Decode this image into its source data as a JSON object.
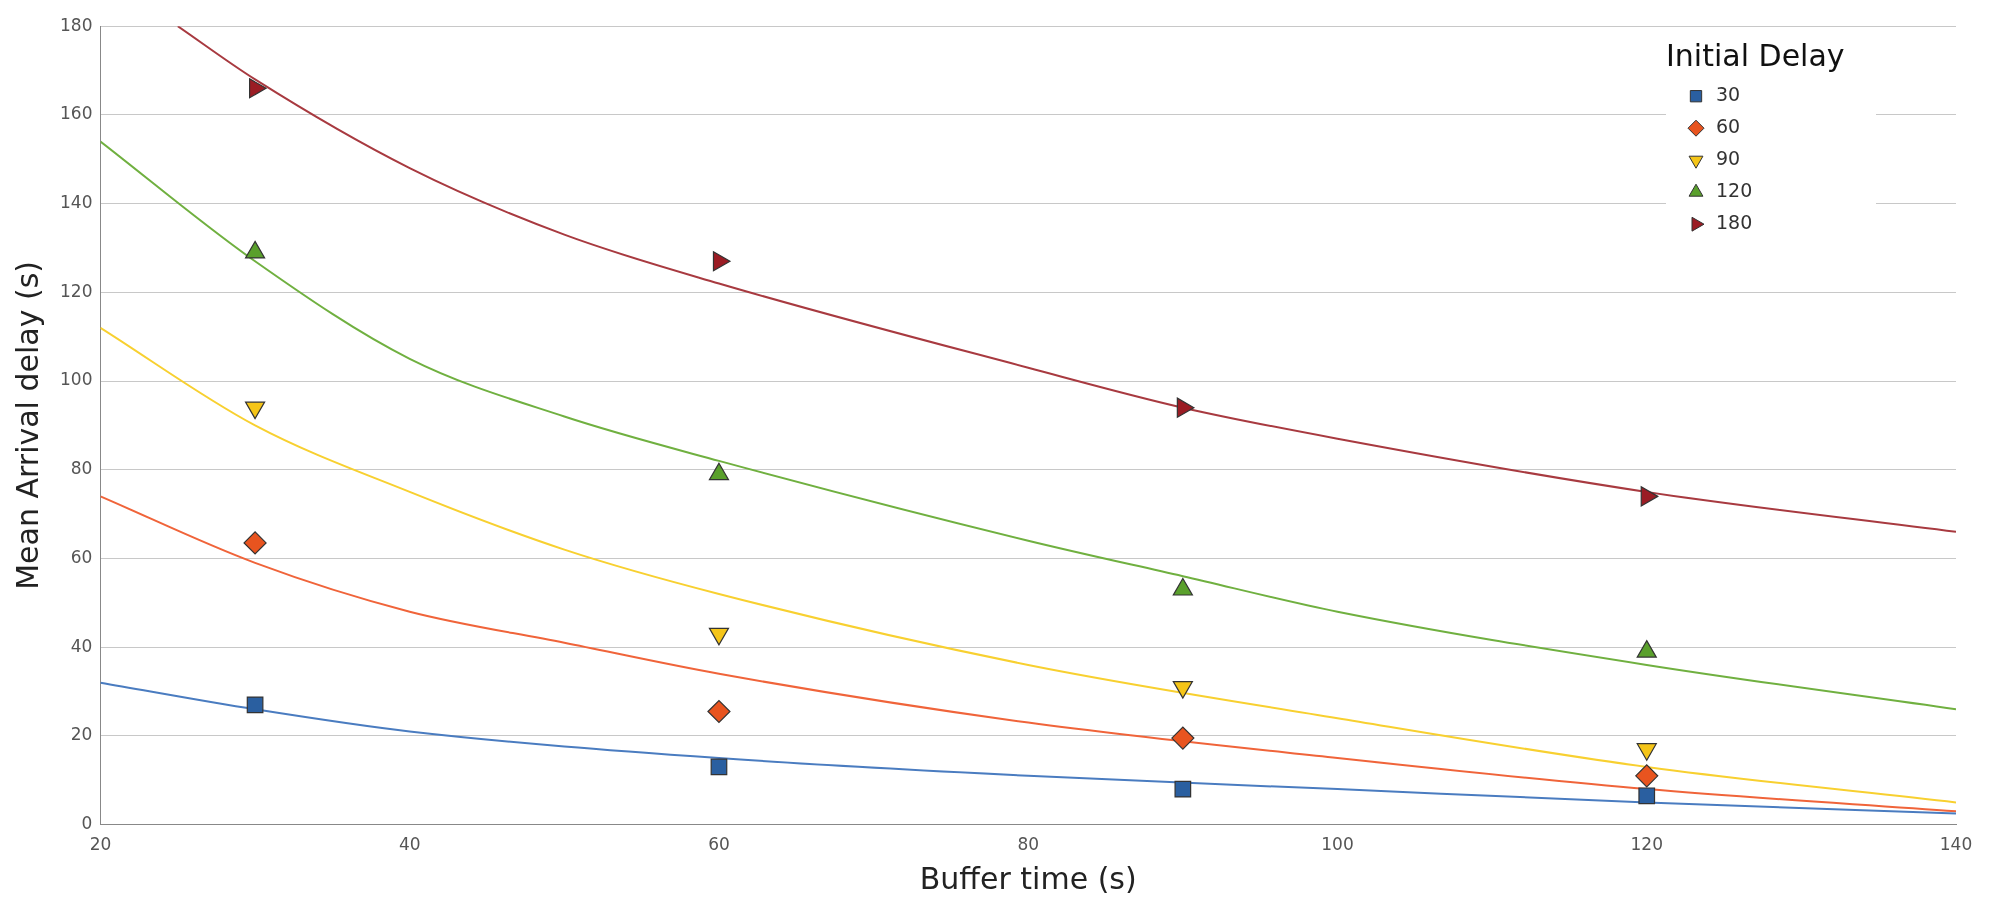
{
  "chart_data": {
    "type": "scatter",
    "xlabel": "Buffer time (s)",
    "ylabel": "Mean Arrival delay (s)",
    "legend_title": "Initial Delay",
    "legend": "top right",
    "grid": "y",
    "xlim": [
      20,
      140
    ],
    "ylim": [
      0,
      180
    ],
    "xticks": [
      20,
      40,
      60,
      80,
      100,
      120,
      140
    ],
    "yticks": [
      0,
      20,
      40,
      60,
      80,
      100,
      120,
      140,
      160,
      180
    ],
    "x": [
      30,
      60,
      90,
      120
    ],
    "series": [
      {
        "name": "30",
        "color": "#2a5fa0",
        "marker": "square",
        "values": [
          27,
          13,
          8,
          6.5
        ]
      },
      {
        "name": "60",
        "color": "#e8541f",
        "marker": "diamond",
        "values": [
          63.5,
          25.5,
          19.5,
          11
        ]
      },
      {
        "name": "90",
        "color": "#f5c518",
        "marker": "triangle-down",
        "values": [
          94,
          43,
          31,
          17
        ]
      },
      {
        "name": "120",
        "color": "#5aa02c",
        "marker": "triangle",
        "values": [
          129,
          79,
          53,
          39
        ]
      },
      {
        "name": "180",
        "color": "#9b1c24",
        "marker": "triangle-right",
        "values": [
          166,
          127,
          94,
          74
        ]
      },
      {
        "type": "line",
        "color": "#4a7cc0",
        "marker": "none",
        "x": [
          20,
          30,
          40,
          60,
          80,
          100,
          120,
          140
        ],
        "values": [
          32,
          26,
          21,
          15,
          11,
          8,
          5,
          2.5
        ]
      },
      {
        "type": "line",
        "color": "#f0643a",
        "marker": "none",
        "x": [
          20,
          30,
          40,
          50,
          60,
          80,
          100,
          120,
          140
        ],
        "values": [
          74,
          59,
          48,
          41,
          34,
          23,
          15,
          8,
          3
        ]
      },
      {
        "type": "line",
        "color": "#f8d030",
        "marker": "none",
        "x": [
          20,
          30,
          40,
          50,
          60,
          80,
          100,
          120,
          140
        ],
        "values": [
          112,
          90,
          75,
          62,
          52,
          36,
          24,
          13,
          5
        ]
      },
      {
        "type": "line",
        "color": "#70b040",
        "marker": "none",
        "x": [
          20,
          30,
          40,
          50,
          60,
          80,
          90,
          100,
          120,
          140
        ],
        "values": [
          154,
          127,
          105,
          92,
          82,
          64,
          56,
          48,
          36,
          26
        ]
      },
      {
        "type": "line",
        "color": "#a83a40",
        "marker": "none",
        "x": [
          25,
          30,
          40,
          50,
          60,
          80,
          90,
          100,
          120,
          140
        ],
        "values": [
          180,
          168,
          148,
          133,
          122,
          103,
          94,
          87,
          75,
          66
        ]
      }
    ]
  }
}
